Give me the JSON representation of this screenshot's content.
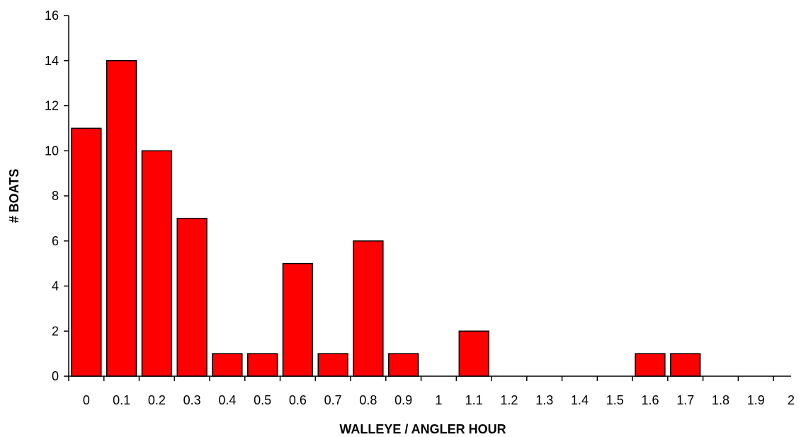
{
  "chart_data": {
    "type": "bar",
    "categories": [
      "0",
      "0.1",
      "0.2",
      "0.3",
      "0.4",
      "0.5",
      "0.6",
      "0.7",
      "0.8",
      "0.9",
      "1",
      "1.1",
      "1.2",
      "1.3",
      "1.4",
      "1.5",
      "1.6",
      "1.7",
      "1.8",
      "1.9",
      "2"
    ],
    "values": [
      11,
      14,
      10,
      7,
      1,
      1,
      5,
      1,
      6,
      1,
      0,
      2,
      0,
      0,
      0,
      0,
      1,
      1,
      0,
      0,
      0
    ],
    "title": "",
    "xlabel": "WALLEYE / ANGLER HOUR",
    "ylabel": "# BOATS",
    "ylim": [
      0,
      16
    ],
    "yticks": [
      "0",
      "2",
      "4",
      "6",
      "8",
      "10",
      "12",
      "14",
      "16"
    ],
    "bar_color": "#ff0000",
    "grid": false,
    "legend": "none"
  }
}
